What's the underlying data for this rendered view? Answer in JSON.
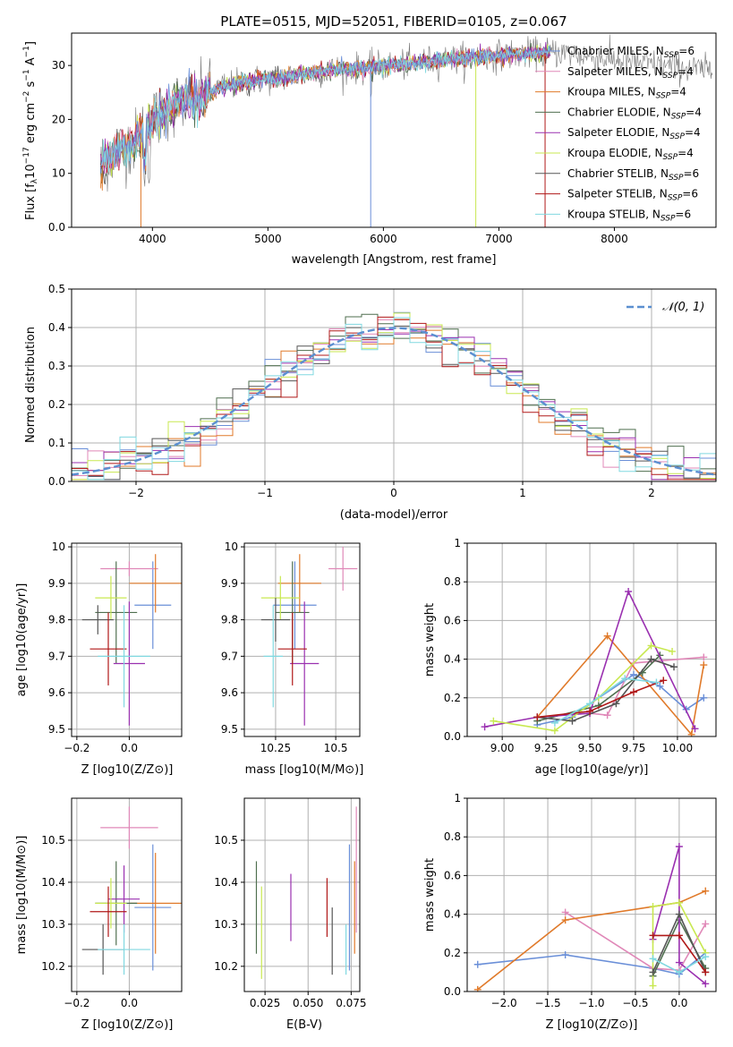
{
  "title": "PLATE=0515, MJD=52051, FIBERID=0105, z=0.067",
  "colors": {
    "chabrier_miles": "#6a8fd8",
    "salpeter_miles": "#e088b8",
    "kroupa_miles": "#e07a2a",
    "chabrier_elodie": "#4f6f4f",
    "salpeter_elodie": "#9a30b0",
    "kroupa_elodie": "#c8e850",
    "chabrier_stelib": "#555555",
    "salpeter_stelib": "#b01818",
    "kroupa_stelib": "#80d8e0",
    "gauss": "#5b8fd0",
    "grid": "#b0b0b0"
  },
  "chart_data": [
    {
      "id": "spectrum",
      "type": "line",
      "xlabel": "wavelength [Angstrom, rest frame]",
      "ylabel": "Flux [f_λ10^-17 erg cm^-2 s^-1 A^-1]",
      "xlim": [
        3300,
        8880
      ],
      "ylim": [
        0,
        36
      ],
      "xticks": [
        4000,
        5000,
        6000,
        7000,
        8000
      ],
      "yticks": [
        0,
        10,
        20,
        30
      ],
      "grid": false,
      "legend_position": "upper-right",
      "legend": [
        "Chabrier MILES, N_SSP=6",
        "Salpeter MILES, N_SSP=4",
        "Kroupa MILES, N_SSP=4",
        "Chabrier ELODIE, N_SSP=4",
        "Salpeter ELODIE, N_SSP=4",
        "Kroupa ELODIE, N_SSP=4",
        "Chabrier STELIB, N_SSP=6",
        "Salpeter STELIB, N_SSP=6",
        "Kroupa STELIB, N_SSP=6"
      ],
      "legend_main": [
        "Chabrier MILES",
        "Salpeter MILES",
        "Kroupa MILES",
        "Chabrier ELODIE",
        "Salpeter ELODIE",
        "Kroupa ELODIE",
        "Chabrier STELIB",
        "Salpeter STELIB",
        "Kroupa STELIB"
      ],
      "legend_nssp": [
        "6",
        "4",
        "4",
        "4",
        "4",
        "4",
        "6",
        "6",
        "6"
      ],
      "continuum": [
        [
          3550,
          12
        ],
        [
          3700,
          14
        ],
        [
          3850,
          16
        ],
        [
          4000,
          20
        ],
        [
          4200,
          23
        ],
        [
          4400,
          24
        ],
        [
          4600,
          26
        ],
        [
          4800,
          27
        ],
        [
          5000,
          27.5
        ],
        [
          5200,
          28
        ],
        [
          5500,
          29
        ],
        [
          5800,
          29.5
        ],
        [
          6100,
          30
        ],
        [
          6500,
          31
        ],
        [
          6800,
          31.5
        ],
        [
          7100,
          32
        ],
        [
          7500,
          32.5
        ],
        [
          8000,
          31
        ],
        [
          8400,
          30
        ],
        [
          8850,
          29
        ]
      ]
    },
    {
      "id": "residuals",
      "type": "step",
      "xlabel": "(data-model)/error",
      "ylabel": "Normed distribution",
      "xlim": [
        -2.5,
        2.5
      ],
      "ylim": [
        0,
        0.5
      ],
      "xticks": [
        -2,
        -1,
        0,
        1,
        2
      ],
      "xtick_labels": [
        "−2",
        "−1",
        "0",
        "1",
        "2"
      ],
      "yticks": [
        0.0,
        0.1,
        0.2,
        0.3,
        0.4,
        0.5
      ],
      "grid": true,
      "legend_position": "upper-right",
      "legend": [
        "𝒩(0, 1)"
      ],
      "bin_edges_start": -2.5,
      "bin_width": 0.125
    },
    {
      "id": "age_vs_Z",
      "type": "errorbar",
      "xlabel": "Z [log10(Z/Z⊙)]",
      "ylabel": "age [log10(age/yr)]",
      "xlim": [
        -0.22,
        0.2
      ],
      "ylim": [
        9.48,
        10.01
      ],
      "xticks": [
        -0.2,
        0.0
      ],
      "xtick_labels": [
        "−0.2",
        "0.0"
      ],
      "yticks": [
        9.5,
        9.6,
        9.7,
        9.8,
        9.9,
        10.0
      ],
      "grid": true,
      "points": [
        {
          "series": "chabrier_miles",
          "x": 0.09,
          "y": 9.84,
          "xerr": 0.07,
          "yerr": 0.12
        },
        {
          "series": "salpeter_miles",
          "x": 0.0,
          "y": 9.94,
          "xerr": 0.11,
          "yerr": 0.02
        },
        {
          "series": "kroupa_miles",
          "x": 0.1,
          "y": 9.9,
          "xerr": 0.1,
          "yerr": 0.08
        },
        {
          "series": "chabrier_elodie",
          "x": -0.05,
          "y": 9.82,
          "xerr": 0.08,
          "yerr": 0.14
        },
        {
          "series": "salpeter_elodie",
          "x": 0.0,
          "y": 9.68,
          "xerr": 0.06,
          "yerr": 0.17
        },
        {
          "series": "kroupa_elodie",
          "x": -0.07,
          "y": 9.86,
          "xerr": 0.06,
          "yerr": 0.06
        },
        {
          "series": "chabrier_stelib",
          "x": -0.12,
          "y": 9.8,
          "xerr": 0.06,
          "yerr": 0.04
        },
        {
          "series": "salpeter_stelib",
          "x": -0.08,
          "y": 9.72,
          "xerr": 0.07,
          "yerr": 0.1
        },
        {
          "series": "kroupa_stelib",
          "x": -0.02,
          "y": 9.7,
          "xerr": 0.1,
          "yerr": 0.14
        }
      ]
    },
    {
      "id": "age_vs_mass",
      "type": "errorbar",
      "xlabel": "mass [log10(M/M⊙)]",
      "ylabel": "",
      "xlim": [
        10.12,
        10.6
      ],
      "ylim": [
        9.48,
        10.01
      ],
      "xticks": [
        10.25,
        10.5
      ],
      "yticks": [
        9.5,
        9.6,
        9.7,
        9.8,
        9.9,
        10.0
      ],
      "grid": true,
      "points": [
        {
          "series": "chabrier_miles",
          "x": 10.33,
          "y": 9.84,
          "xerr": 0.09,
          "yerr": 0.12
        },
        {
          "series": "salpeter_miles",
          "x": 10.53,
          "y": 9.94,
          "xerr": 0.06,
          "yerr": 0.06
        },
        {
          "series": "kroupa_miles",
          "x": 10.35,
          "y": 9.9,
          "xerr": 0.09,
          "yerr": 0.08
        },
        {
          "series": "chabrier_elodie",
          "x": 10.32,
          "y": 9.82,
          "xerr": 0.07,
          "yerr": 0.14
        },
        {
          "series": "salpeter_elodie",
          "x": 10.37,
          "y": 9.68,
          "xerr": 0.06,
          "yerr": 0.17
        },
        {
          "series": "kroupa_elodie",
          "x": 10.27,
          "y": 9.86,
          "xerr": 0.08,
          "yerr": 0.06
        },
        {
          "series": "chabrier_stelib",
          "x": 10.25,
          "y": 9.8,
          "xerr": 0.06,
          "yerr": 0.06
        },
        {
          "series": "salpeter_stelib",
          "x": 10.32,
          "y": 9.72,
          "xerr": 0.06,
          "yerr": 0.1
        },
        {
          "series": "kroupa_stelib",
          "x": 10.24,
          "y": 9.7,
          "xerr": 0.04,
          "yerr": 0.14
        }
      ]
    },
    {
      "id": "weight_vs_age",
      "type": "line",
      "xlabel": "age [log10(age/yr)]",
      "ylabel": "mass weight",
      "xlim": [
        8.8,
        10.22
      ],
      "ylim": [
        0,
        1.0
      ],
      "xticks": [
        9.0,
        9.25,
        9.5,
        9.75,
        10.0
      ],
      "xtick_labels": [
        "9.00",
        "9.25",
        "9.50",
        "9.75",
        "10.00"
      ],
      "yticks": [
        0.0,
        0.2,
        0.4,
        0.6,
        0.8,
        1.0
      ],
      "grid": true,
      "series": [
        {
          "key": "chabrier_miles",
          "points": [
            [
              9.2,
              0.06
            ],
            [
              9.4,
              0.1
            ],
            [
              9.55,
              0.2
            ],
            [
              9.75,
              0.32
            ],
            [
              9.9,
              0.26
            ],
            [
              10.05,
              0.14
            ],
            [
              10.15,
              0.2
            ]
          ]
        },
        {
          "key": "salpeter_miles",
          "points": [
            [
              9.5,
              0.12
            ],
            [
              9.6,
              0.11
            ],
            [
              9.75,
              0.38
            ],
            [
              10.15,
              0.41
            ]
          ]
        },
        {
          "key": "kroupa_miles",
          "points": [
            [
              9.2,
              0.1
            ],
            [
              9.6,
              0.52
            ],
            [
              10.08,
              0.01
            ],
            [
              10.15,
              0.37
            ]
          ]
        },
        {
          "key": "chabrier_elodie",
          "points": [
            [
              9.2,
              0.08
            ],
            [
              9.55,
              0.16
            ],
            [
              9.8,
              0.33
            ],
            [
              9.9,
              0.42
            ]
          ]
        },
        {
          "key": "salpeter_elodie",
          "points": [
            [
              8.9,
              0.05
            ],
            [
              9.2,
              0.1
            ],
            [
              9.5,
              0.12
            ],
            [
              9.72,
              0.75
            ],
            [
              10.1,
              0.04
            ]
          ]
        },
        {
          "key": "kroupa_elodie",
          "points": [
            [
              8.95,
              0.08
            ],
            [
              9.3,
              0.03
            ],
            [
              9.55,
              0.2
            ],
            [
              9.85,
              0.47
            ],
            [
              9.97,
              0.44
            ]
          ]
        },
        {
          "key": "chabrier_stelib",
          "points": [
            [
              9.2,
              0.1
            ],
            [
              9.4,
              0.08
            ],
            [
              9.65,
              0.17
            ],
            [
              9.85,
              0.4
            ],
            [
              9.98,
              0.36
            ]
          ]
        },
        {
          "key": "salpeter_stelib",
          "points": [
            [
              9.2,
              0.1
            ],
            [
              9.5,
              0.13
            ],
            [
              9.75,
              0.23
            ],
            [
              9.92,
              0.29
            ]
          ]
        },
        {
          "key": "kroupa_stelib",
          "points": [
            [
              9.3,
              0.07
            ],
            [
              9.5,
              0.17
            ],
            [
              9.7,
              0.3
            ],
            [
              9.88,
              0.28
            ]
          ]
        }
      ]
    },
    {
      "id": "mass_vs_Z",
      "type": "errorbar",
      "xlabel": "Z [log10(Z/Z⊙)]",
      "ylabel": "mass [log10(M/M⊙)]",
      "xlim": [
        -0.22,
        0.2
      ],
      "ylim": [
        10.14,
        10.6
      ],
      "xticks": [
        -0.2,
        0.0
      ],
      "xtick_labels": [
        "−0.2",
        "0.0"
      ],
      "yticks": [
        10.2,
        10.3,
        10.4,
        10.5
      ],
      "grid": true,
      "points": [
        {
          "series": "chabrier_miles",
          "x": 0.09,
          "y": 10.34,
          "xerr": 0.07,
          "yerr": 0.15
        },
        {
          "series": "salpeter_miles",
          "x": 0.0,
          "y": 10.53,
          "xerr": 0.11,
          "yerr": 0.05
        },
        {
          "series": "kroupa_miles",
          "x": 0.1,
          "y": 10.35,
          "xerr": 0.1,
          "yerr": 0.12
        },
        {
          "series": "chabrier_elodie",
          "x": -0.05,
          "y": 10.35,
          "xerr": 0.08,
          "yerr": 0.1
        },
        {
          "series": "salpeter_elodie",
          "x": -0.02,
          "y": 10.36,
          "xerr": 0.06,
          "yerr": 0.08
        },
        {
          "series": "kroupa_elodie",
          "x": -0.07,
          "y": 10.35,
          "xerr": 0.06,
          "yerr": 0.06
        },
        {
          "series": "chabrier_stelib",
          "x": -0.1,
          "y": 10.24,
          "xerr": 0.08,
          "yerr": 0.06
        },
        {
          "series": "salpeter_stelib",
          "x": -0.08,
          "y": 10.33,
          "xerr": 0.07,
          "yerr": 0.06
        },
        {
          "series": "kroupa_stelib",
          "x": -0.02,
          "y": 10.24,
          "xerr": 0.1,
          "yerr": 0.06
        }
      ]
    },
    {
      "id": "mass_vs_EBV",
      "type": "errorbar",
      "xlabel": "E(B-V)",
      "ylabel": "",
      "xlim": [
        0.013,
        0.08
      ],
      "ylim": [
        10.14,
        10.6
      ],
      "xticks": [
        0.025,
        0.05,
        0.075
      ],
      "xtick_labels": [
        "0.025",
        "0.050",
        "0.075"
      ],
      "yticks": [
        10.2,
        10.3,
        10.4,
        10.5
      ],
      "grid": true,
      "points": [
        {
          "series": "chabrier_miles",
          "x": 0.074,
          "y": 10.34,
          "yerr": 0.15
        },
        {
          "series": "salpeter_miles",
          "x": 0.078,
          "y": 10.43,
          "yerr": 0.15
        },
        {
          "series": "kroupa_miles",
          "x": 0.077,
          "y": 10.34,
          "yerr": 0.11
        },
        {
          "series": "chabrier_elodie",
          "x": 0.02,
          "y": 10.34,
          "yerr": 0.11
        },
        {
          "series": "salpeter_elodie",
          "x": 0.04,
          "y": 10.34,
          "yerr": 0.08
        },
        {
          "series": "kroupa_elodie",
          "x": 0.023,
          "y": 10.28,
          "yerr": 0.11
        },
        {
          "series": "chabrier_stelib",
          "x": 0.064,
          "y": 10.26,
          "yerr": 0.08
        },
        {
          "series": "salpeter_stelib",
          "x": 0.061,
          "y": 10.34,
          "yerr": 0.07
        },
        {
          "series": "kroupa_stelib",
          "x": 0.072,
          "y": 10.24,
          "yerr": 0.06
        }
      ]
    },
    {
      "id": "weight_vs_Z",
      "type": "line",
      "xlabel": "Z [log10(Z/Z⊙)]",
      "ylabel": "mass weight",
      "xlim": [
        -2.42,
        0.42
      ],
      "ylim": [
        0,
        1.0
      ],
      "xticks": [
        -2.0,
        -1.5,
        -1.0,
        -0.5,
        0.0
      ],
      "xtick_labels": [
        "−2.0",
        "−1.5",
        "−1.0",
        "−0.5",
        "0.0"
      ],
      "yticks": [
        0.0,
        0.2,
        0.4,
        0.6,
        0.8,
        1.0
      ],
      "grid": true,
      "series": [
        {
          "key": "chabrier_miles",
          "points": [
            [
              -2.3,
              0.14
            ],
            [
              -1.3,
              0.19
            ],
            [
              -0.3,
              0.12
            ],
            [
              0.0,
              0.09
            ],
            [
              0.3,
              0.2
            ]
          ]
        },
        {
          "key": "salpeter_miles",
          "points": [
            [
              -1.3,
              0.41
            ],
            [
              -0.3,
              0.12
            ],
            [
              0.0,
              0.11
            ],
            [
              0.3,
              0.35
            ]
          ]
        },
        {
          "key": "kroupa_miles",
          "points": [
            [
              -2.3,
              0.01
            ],
            [
              -1.3,
              0.37
            ],
            [
              0.0,
              0.46
            ],
            [
              0.3,
              0.52
            ]
          ]
        },
        {
          "key": "chabrier_elodie",
          "points": [
            [
              -0.3,
              0.08
            ],
            [
              0.0,
              0.37
            ],
            [
              0.3,
              0.12
            ]
          ]
        },
        {
          "key": "salpeter_elodie",
          "points": [
            [
              -0.3,
              0.27
            ],
            [
              0.0,
              0.75
            ],
            [
              0.0,
              0.15
            ],
            [
              0.3,
              0.04
            ]
          ]
        },
        {
          "key": "kroupa_elodie",
          "points": [
            [
              -0.3,
              0.03
            ],
            [
              -0.3,
              0.44
            ],
            [
              0.0,
              0.46
            ],
            [
              0.3,
              0.2
            ]
          ]
        },
        {
          "key": "chabrier_stelib",
          "points": [
            [
              -0.3,
              0.1
            ],
            [
              0.0,
              0.4
            ],
            [
              0.3,
              0.1
            ]
          ]
        },
        {
          "key": "salpeter_stelib",
          "points": [
            [
              -0.3,
              0.29
            ],
            [
              0.0,
              0.29
            ],
            [
              0.3,
              0.1
            ]
          ]
        },
        {
          "key": "kroupa_stelib",
          "points": [
            [
              -0.3,
              0.17
            ],
            [
              0.0,
              0.1
            ],
            [
              0.3,
              0.18
            ]
          ]
        }
      ]
    }
  ]
}
